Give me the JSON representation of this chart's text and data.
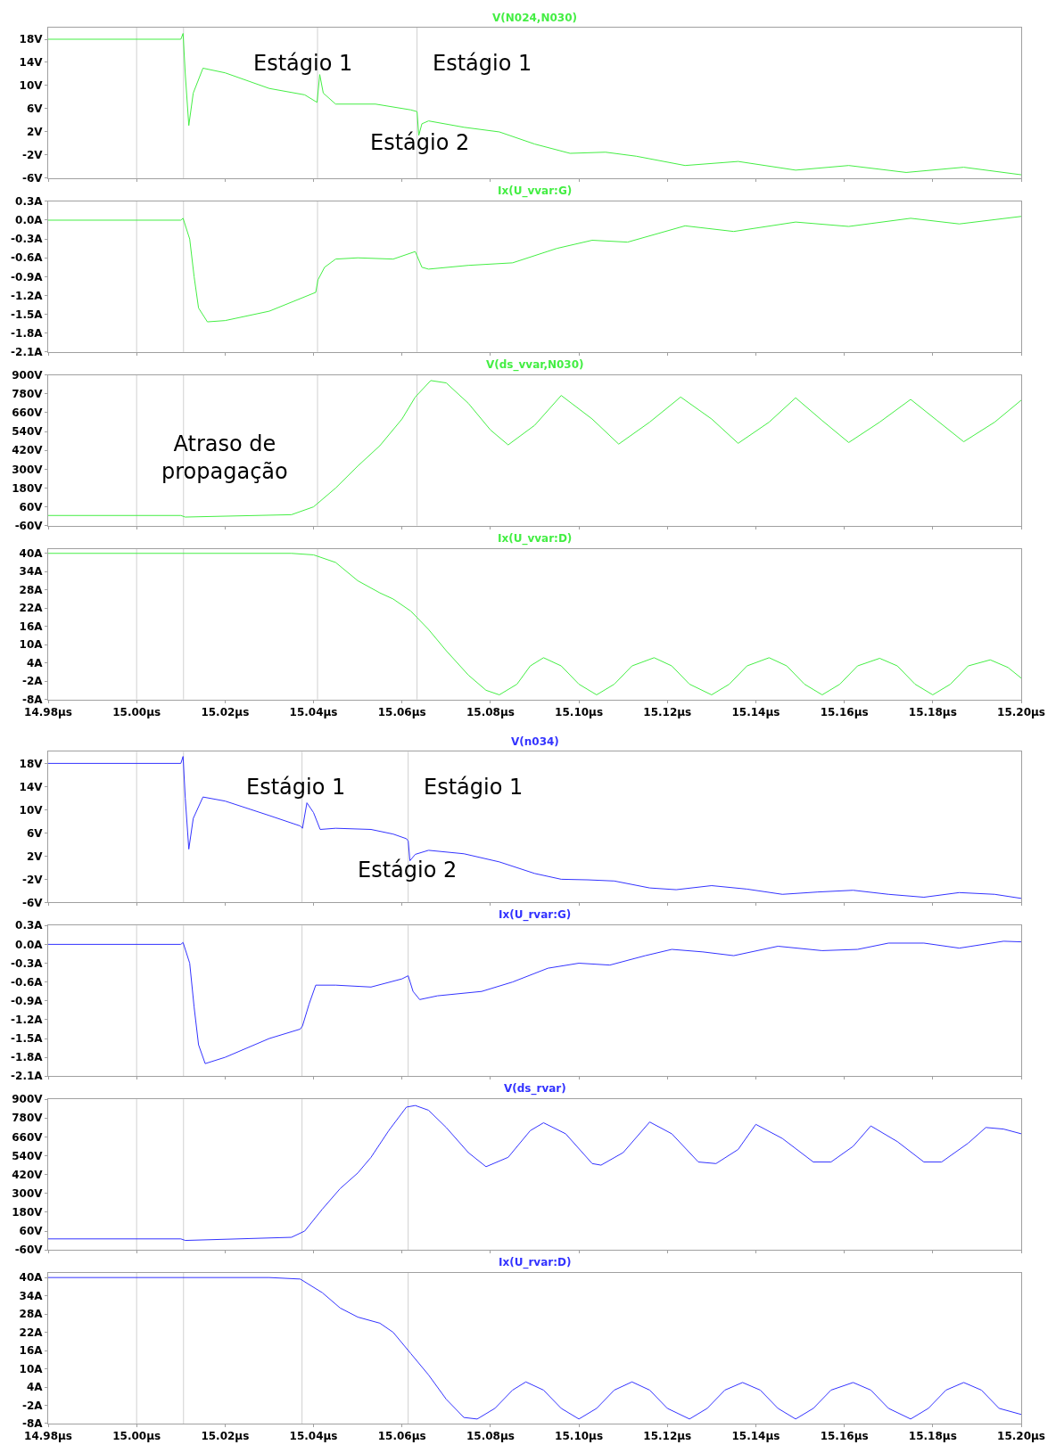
{
  "chart_data": [
    {
      "type": "line",
      "title": "V(N024,N030)",
      "xlim": [
        14.98,
        15.2
      ],
      "xticks": [
        {
          "value": 14.98,
          "label": "14.98µs"
        },
        {
          "value": 15.0,
          "label": "15.00µs"
        },
        {
          "value": 15.02,
          "label": "15.02µs"
        },
        {
          "value": 15.04,
          "label": "15.04µs"
        },
        {
          "value": 15.06,
          "label": "15.06µs"
        },
        {
          "value": 15.08,
          "label": "15.08µs"
        },
        {
          "value": 15.1,
          "label": "15.10µs"
        },
        {
          "value": 15.12,
          "label": "15.12µs"
        },
        {
          "value": 15.14,
          "label": "15.14µs"
        },
        {
          "value": 15.16,
          "label": "15.16µs"
        },
        {
          "value": 15.18,
          "label": "15.18µs"
        },
        {
          "value": 15.2,
          "label": "15.20µs"
        }
      ],
      "tick_labels": "y",
      "ylim": [
        -6,
        20
      ],
      "yticks": [
        {
          "value": 18,
          "label": "18V"
        },
        {
          "value": 14,
          "label": "14V"
        },
        {
          "value": 10,
          "label": "10V"
        },
        {
          "value": 6,
          "label": "6V"
        },
        {
          "value": 2,
          "label": "2V"
        },
        {
          "value": -2,
          "label": "-2V"
        },
        {
          "value": -6,
          "label": "-6V"
        }
      ],
      "ref_lines": [
        {
          "axis": "x",
          "value": 15.0,
          "color": "#d0d0d0"
        },
        {
          "axis": "x",
          "value": 15.0106,
          "color": "#d0d0d0"
        },
        {
          "axis": "x",
          "value": 15.0409,
          "color": "#d0d0d0"
        },
        {
          "axis": "x",
          "value": 15.0634,
          "color": "#d0d0d0"
        }
      ],
      "annotations": [
        "Estágio 1",
        "Estágio 1",
        "Estágio 2"
      ],
      "series": [
        {
          "color": "#44ee44",
          "x": [
            14.98,
            15.01,
            15.0105,
            15.011,
            15.0118,
            15.0128,
            15.015,
            15.02,
            15.03,
            15.038,
            15.0408,
            15.0414,
            15.0422,
            15.045,
            15.054,
            15.062,
            15.0634,
            15.0638,
            15.0645,
            15.066,
            15.074,
            15.082,
            15.09,
            15.098,
            15.106,
            15.113,
            15.124,
            15.136,
            15.149,
            15.161,
            15.174,
            15.187,
            15.2
          ],
          "values": [
            18,
            18,
            19,
            12,
            3.1,
            8.7,
            13,
            12.2,
            9.5,
            8.4,
            7.1,
            11.9,
            8.7,
            6.8,
            6.8,
            5.8,
            5.5,
            1.4,
            3.4,
            3.9,
            2.8,
            2,
            -0.1,
            -1.7,
            -1.5,
            -2.2,
            -3.8,
            -3.1,
            -4.6,
            -3.8,
            -5,
            -4.1,
            -5.4
          ]
        }
      ]
    },
    {
      "type": "line",
      "title": "Ix(U_vvar:G)",
      "xlim": [
        14.98,
        15.2
      ],
      "xticks": [
        {
          "value": 14.98,
          "label": "14.98µs"
        },
        {
          "value": 15.0,
          "label": "15.00µs"
        },
        {
          "value": 15.02,
          "label": "15.02µs"
        },
        {
          "value": 15.04,
          "label": "15.04µs"
        },
        {
          "value": 15.06,
          "label": "15.06µs"
        },
        {
          "value": 15.08,
          "label": "15.08µs"
        },
        {
          "value": 15.1,
          "label": "15.10µs"
        },
        {
          "value": 15.12,
          "label": "15.12µs"
        },
        {
          "value": 15.14,
          "label": "15.14µs"
        },
        {
          "value": 15.16,
          "label": "15.16µs"
        },
        {
          "value": 15.18,
          "label": "15.18µs"
        },
        {
          "value": 15.2,
          "label": "15.20µs"
        }
      ],
      "tick_labels": "y",
      "ylim": [
        -2.1,
        0.3
      ],
      "yticks": [
        {
          "value": 0.3,
          "label": "0.3A"
        },
        {
          "value": 0.0,
          "label": "0.0A"
        },
        {
          "value": -0.3,
          "label": "-0.3A"
        },
        {
          "value": -0.6,
          "label": "-0.6A"
        },
        {
          "value": -0.9,
          "label": "-0.9A"
        },
        {
          "value": -1.2,
          "label": "-1.2A"
        },
        {
          "value": -1.5,
          "label": "-1.5A"
        },
        {
          "value": -1.8,
          "label": "-1.8A"
        },
        {
          "value": -2.1,
          "label": "-2.1A"
        }
      ],
      "ref_lines": [
        {
          "axis": "x",
          "value": 15.0,
          "color": "#d0d0d0"
        },
        {
          "axis": "x",
          "value": 15.0106,
          "color": "#d0d0d0"
        },
        {
          "axis": "x",
          "value": 15.0409,
          "color": "#d0d0d0"
        },
        {
          "axis": "x",
          "value": 15.0634,
          "color": "#d0d0d0"
        }
      ],
      "series": [
        {
          "color": "#44ee44",
          "x": [
            14.98,
            15.01,
            15.0105,
            15.012,
            15.013,
            15.014,
            15.016,
            15.02,
            15.03,
            15.0405,
            15.041,
            15.0425,
            15.045,
            15.05,
            15.058,
            15.063,
            15.0645,
            15.066,
            15.075,
            15.085,
            15.095,
            15.103,
            15.111,
            15.124,
            15.135,
            15.149,
            15.161,
            15.175,
            15.186,
            15.2
          ],
          "values": [
            0,
            0,
            0.03,
            -0.3,
            -0.9,
            -1.4,
            -1.62,
            -1.6,
            -1.45,
            -1.15,
            -0.95,
            -0.75,
            -0.62,
            -0.6,
            -0.62,
            -0.5,
            -0.75,
            -0.78,
            -0.72,
            -0.68,
            -0.45,
            -0.32,
            -0.35,
            -0.09,
            -0.18,
            -0.03,
            -0.1,
            0.03,
            -0.06,
            0.06
          ]
        }
      ]
    },
    {
      "type": "line",
      "title": "V(ds_vvar,N030)",
      "xlim": [
        14.98,
        15.2
      ],
      "xticks": [
        {
          "value": 14.98,
          "label": "14.98µs"
        },
        {
          "value": 15.0,
          "label": "15.00µs"
        },
        {
          "value": 15.02,
          "label": "15.02µs"
        },
        {
          "value": 15.04,
          "label": "15.04µs"
        },
        {
          "value": 15.06,
          "label": "15.06µs"
        },
        {
          "value": 15.08,
          "label": "15.08µs"
        },
        {
          "value": 15.1,
          "label": "15.10µs"
        },
        {
          "value": 15.12,
          "label": "15.12µs"
        },
        {
          "value": 15.14,
          "label": "15.14µs"
        },
        {
          "value": 15.16,
          "label": "15.16µs"
        },
        {
          "value": 15.18,
          "label": "15.18µs"
        },
        {
          "value": 15.2,
          "label": "15.20µs"
        }
      ],
      "tick_labels": "y",
      "ylim": [
        -60,
        900
      ],
      "yticks": [
        {
          "value": 900,
          "label": "900V"
        },
        {
          "value": 780,
          "label": "780V"
        },
        {
          "value": 660,
          "label": "660V"
        },
        {
          "value": 540,
          "label": "540V"
        },
        {
          "value": 420,
          "label": "420V"
        },
        {
          "value": 300,
          "label": "300V"
        },
        {
          "value": 180,
          "label": "180V"
        },
        {
          "value": 60,
          "label": "60V"
        },
        {
          "value": -60,
          "label": "-60V"
        }
      ],
      "ref_lines": [
        {
          "axis": "x",
          "value": 15.0,
          "color": "#d0d0d0"
        },
        {
          "axis": "x",
          "value": 15.0106,
          "color": "#d0d0d0"
        },
        {
          "axis": "x",
          "value": 15.0409,
          "color": "#d0d0d0"
        },
        {
          "axis": "x",
          "value": 15.0634,
          "color": "#d0d0d0"
        }
      ],
      "annotations": [
        "Atraso de propagação"
      ],
      "series": [
        {
          "color": "#44ee44",
          "x": [
            14.98,
            15.01,
            15.011,
            15.035,
            15.04,
            15.045,
            15.05,
            15.055,
            15.06,
            15.063,
            15.0665,
            15.07,
            15.075,
            15.08,
            15.084,
            15.09,
            15.096,
            15.103,
            15.109,
            15.116,
            15.123,
            15.13,
            15.136,
            15.143,
            15.149,
            15.155,
            15.161,
            15.168,
            15.175,
            15.181,
            15.187,
            15.194,
            15.2
          ],
          "values": [
            5,
            5,
            -5,
            10,
            60,
            180,
            320,
            450,
            620,
            760,
            865,
            850,
            720,
            550,
            455,
            580,
            770,
            620,
            460,
            600,
            760,
            620,
            465,
            600,
            755,
            610,
            470,
            600,
            745,
            610,
            475,
            600,
            740
          ]
        }
      ]
    },
    {
      "type": "line",
      "title": "Ix(U_vvar:D)",
      "xlim": [
        14.98,
        15.2
      ],
      "xticks": [
        {
          "value": 14.98,
          "label": "14.98µs"
        },
        {
          "value": 15.0,
          "label": "15.00µs"
        },
        {
          "value": 15.02,
          "label": "15.02µs"
        },
        {
          "value": 15.04,
          "label": "15.04µs"
        },
        {
          "value": 15.06,
          "label": "15.06µs"
        },
        {
          "value": 15.08,
          "label": "15.08µs"
        },
        {
          "value": 15.1,
          "label": "15.10µs"
        },
        {
          "value": 15.12,
          "label": "15.12µs"
        },
        {
          "value": 15.14,
          "label": "15.14µs"
        },
        {
          "value": 15.16,
          "label": "15.16µs"
        },
        {
          "value": 15.18,
          "label": "15.18µs"
        },
        {
          "value": 15.2,
          "label": "15.20µs"
        }
      ],
      "ylim": [
        -8,
        41.5
      ],
      "yticks": [
        {
          "value": 40,
          "label": "40A"
        },
        {
          "value": 34,
          "label": "34A"
        },
        {
          "value": 28,
          "label": "28A"
        },
        {
          "value": 22,
          "label": "22A"
        },
        {
          "value": 16,
          "label": "16A"
        },
        {
          "value": 10,
          "label": "10A"
        },
        {
          "value": 4,
          "label": "4A"
        },
        {
          "value": -2,
          "label": "-2A"
        },
        {
          "value": -8,
          "label": "-8A"
        }
      ],
      "ref_lines": [
        {
          "axis": "x",
          "value": 15.0,
          "color": "#d0d0d0"
        },
        {
          "axis": "x",
          "value": 15.0106,
          "color": "#d0d0d0"
        },
        {
          "axis": "x",
          "value": 15.0409,
          "color": "#d0d0d0"
        },
        {
          "axis": "x",
          "value": 15.0634,
          "color": "#d0d0d0"
        }
      ],
      "series": [
        {
          "color": "#44ee44",
          "x": [
            14.98,
            15.035,
            15.04,
            15.045,
            15.05,
            15.055,
            15.058,
            15.062,
            15.066,
            15.07,
            15.075,
            15.079,
            15.082,
            15.086,
            15.089,
            15.092,
            15.096,
            15.1,
            15.104,
            15.108,
            15.112,
            15.117,
            15.121,
            15.125,
            15.13,
            15.134,
            15.138,
            15.143,
            15.147,
            15.151,
            15.155,
            15.159,
            15.163,
            15.168,
            15.172,
            15.176,
            15.18,
            15.184,
            15.188,
            15.193,
            15.197,
            15.2
          ],
          "values": [
            40,
            40,
            39.5,
            37,
            31,
            27,
            25,
            21,
            15,
            8,
            0,
            -5,
            -6.5,
            -3,
            3,
            5.7,
            3,
            -3,
            -6.5,
            -3,
            3,
            5.7,
            3,
            -3,
            -6.5,
            -3,
            3,
            5.7,
            3,
            -3,
            -6.5,
            -3,
            3,
            5.5,
            3,
            -3,
            -6.5,
            -3,
            3,
            5,
            2.5,
            -1
          ]
        }
      ]
    },
    {
      "type": "line",
      "title": "V(n034)",
      "xlim": [
        14.98,
        15.2
      ],
      "xticks": [
        {
          "value": 14.98,
          "label": "14.98µs"
        },
        {
          "value": 15.0,
          "label": "15.00µs"
        },
        {
          "value": 15.02,
          "label": "15.02µs"
        },
        {
          "value": 15.04,
          "label": "15.04µs"
        },
        {
          "value": 15.06,
          "label": "15.06µs"
        },
        {
          "value": 15.08,
          "label": "15.08µs"
        },
        {
          "value": 15.1,
          "label": "15.10µs"
        },
        {
          "value": 15.12,
          "label": "15.12µs"
        },
        {
          "value": 15.14,
          "label": "15.14µs"
        },
        {
          "value": 15.16,
          "label": "15.16µs"
        },
        {
          "value": 15.18,
          "label": "15.18µs"
        },
        {
          "value": 15.2,
          "label": "15.20µs"
        }
      ],
      "tick_labels": "y",
      "ylim": [
        -6,
        20
      ],
      "yticks": [
        {
          "value": 18,
          "label": "18V"
        },
        {
          "value": 14,
          "label": "14V"
        },
        {
          "value": 10,
          "label": "10V"
        },
        {
          "value": 6,
          "label": "6V"
        },
        {
          "value": 2,
          "label": "2V"
        },
        {
          "value": -2,
          "label": "-2V"
        },
        {
          "value": -6,
          "label": "-6V"
        }
      ],
      "ref_lines": [
        {
          "axis": "x",
          "value": 15.0,
          "color": "#d0d0d0"
        },
        {
          "axis": "x",
          "value": 15.0106,
          "color": "#d0d0d0"
        },
        {
          "axis": "x",
          "value": 15.0374,
          "color": "#d0d0d0"
        },
        {
          "axis": "x",
          "value": 15.0614,
          "color": "#d0d0d0"
        }
      ],
      "annotations": [
        "Estágio 1",
        "Estágio 1",
        "Estágio 2"
      ],
      "series": [
        {
          "color": "#3333ff",
          "x": [
            14.98,
            15.01,
            15.0105,
            15.011,
            15.0118,
            15.0128,
            15.015,
            15.02,
            15.03,
            15.037,
            15.0375,
            15.0385,
            15.04,
            15.0415,
            15.045,
            15.053,
            15.058,
            15.061,
            15.0614,
            15.0618,
            15.063,
            15.066,
            15.074,
            15.082,
            15.09,
            15.096,
            15.102,
            15.108,
            15.116,
            15.122,
            15.13,
            15.138,
            15.146,
            15.154,
            15.162,
            15.17,
            15.178,
            15.186,
            15.194,
            15.2
          ],
          "values": [
            18,
            18,
            19.2,
            12,
            3.2,
            8.5,
            12.2,
            11.5,
            9,
            7.2,
            6.8,
            11.2,
            9.5,
            6.6,
            6.8,
            6.6,
            5.8,
            5,
            4.6,
            1.2,
            2.3,
            3,
            2.4,
            1,
            -1,
            -2,
            -2.1,
            -2.3,
            -3.5,
            -3.8,
            -3.1,
            -3.7,
            -4.6,
            -4.2,
            -3.9,
            -4.6,
            -5.1,
            -4.3,
            -4.6,
            -5.3
          ]
        }
      ]
    },
    {
      "type": "line",
      "title": "Ix(U_rvar:G)",
      "xlim": [
        14.98,
        15.2
      ],
      "xticks": [
        {
          "value": 14.98,
          "label": "14.98µs"
        },
        {
          "value": 15.0,
          "label": "15.00µs"
        },
        {
          "value": 15.02,
          "label": "15.02µs"
        },
        {
          "value": 15.04,
          "label": "15.04µs"
        },
        {
          "value": 15.06,
          "label": "15.06µs"
        },
        {
          "value": 15.08,
          "label": "15.08µs"
        },
        {
          "value": 15.1,
          "label": "15.10µs"
        },
        {
          "value": 15.12,
          "label": "15.12µs"
        },
        {
          "value": 15.14,
          "label": "15.14µs"
        },
        {
          "value": 15.16,
          "label": "15.16µs"
        },
        {
          "value": 15.18,
          "label": "15.18µs"
        },
        {
          "value": 15.2,
          "label": "15.20µs"
        }
      ],
      "tick_labels": "y",
      "ylim": [
        -2.1,
        0.3
      ],
      "yticks": [
        {
          "value": 0.3,
          "label": "0.3A"
        },
        {
          "value": 0.0,
          "label": "0.0A"
        },
        {
          "value": -0.3,
          "label": "-0.3A"
        },
        {
          "value": -0.6,
          "label": "-0.6A"
        },
        {
          "value": -0.9,
          "label": "-0.9A"
        },
        {
          "value": -1.2,
          "label": "-1.2A"
        },
        {
          "value": -1.5,
          "label": "-1.5A"
        },
        {
          "value": -1.8,
          "label": "-1.8A"
        },
        {
          "value": -2.1,
          "label": "-2.1A"
        }
      ],
      "ref_lines": [
        {
          "axis": "x",
          "value": 15.0,
          "color": "#d0d0d0"
        },
        {
          "axis": "x",
          "value": 15.0106,
          "color": "#d0d0d0"
        },
        {
          "axis": "x",
          "value": 15.0374,
          "color": "#d0d0d0"
        },
        {
          "axis": "x",
          "value": 15.0614,
          "color": "#d0d0d0"
        }
      ],
      "series": [
        {
          "color": "#3333ff",
          "x": [
            14.98,
            15.01,
            15.0105,
            15.012,
            15.013,
            15.014,
            15.0155,
            15.02,
            15.03,
            15.037,
            15.0375,
            15.039,
            15.0405,
            15.045,
            15.053,
            15.06,
            15.0614,
            15.0625,
            15.064,
            15.068,
            15.078,
            15.085,
            15.093,
            15.1,
            15.107,
            15.115,
            15.121,
            15.128,
            15.135,
            15.145,
            15.155,
            15.163,
            15.17,
            15.178,
            15.186,
            15.196,
            15.2
          ],
          "values": [
            0,
            0,
            0.03,
            -0.3,
            -1.0,
            -1.6,
            -1.9,
            -1.8,
            -1.5,
            -1.35,
            -1.3,
            -0.95,
            -0.65,
            -0.65,
            -0.68,
            -0.55,
            -0.5,
            -0.75,
            -0.88,
            -0.82,
            -0.75,
            -0.6,
            -0.38,
            -0.3,
            -0.33,
            -0.18,
            -0.08,
            -0.12,
            -0.18,
            -0.03,
            -0.1,
            -0.08,
            0.02,
            0.02,
            -0.06,
            0.05,
            0.04
          ]
        }
      ]
    },
    {
      "type": "line",
      "title": "V(ds_rvar)",
      "xlim": [
        14.98,
        15.2
      ],
      "xticks": [
        {
          "value": 14.98,
          "label": "14.98µs"
        },
        {
          "value": 15.0,
          "label": "15.00µs"
        },
        {
          "value": 15.02,
          "label": "15.02µs"
        },
        {
          "value": 15.04,
          "label": "15.04µs"
        },
        {
          "value": 15.06,
          "label": "15.06µs"
        },
        {
          "value": 15.08,
          "label": "15.08µs"
        },
        {
          "value": 15.1,
          "label": "15.10µs"
        },
        {
          "value": 15.12,
          "label": "15.12µs"
        },
        {
          "value": 15.14,
          "label": "15.14µs"
        },
        {
          "value": 15.16,
          "label": "15.16µs"
        },
        {
          "value": 15.18,
          "label": "15.18µs"
        },
        {
          "value": 15.2,
          "label": "15.20µs"
        }
      ],
      "tick_labels": "y",
      "ylim": [
        -60,
        900
      ],
      "yticks": [
        {
          "value": 900,
          "label": "900V"
        },
        {
          "value": 780,
          "label": "780V"
        },
        {
          "value": 660,
          "label": "660V"
        },
        {
          "value": 540,
          "label": "540V"
        },
        {
          "value": 420,
          "label": "420V"
        },
        {
          "value": 300,
          "label": "300V"
        },
        {
          "value": 180,
          "label": "180V"
        },
        {
          "value": 60,
          "label": "60V"
        },
        {
          "value": -60,
          "label": "-60V"
        }
      ],
      "ref_lines": [
        {
          "axis": "x",
          "value": 15.0,
          "color": "#d0d0d0"
        },
        {
          "axis": "x",
          "value": 15.0106,
          "color": "#d0d0d0"
        },
        {
          "axis": "x",
          "value": 15.0374,
          "color": "#d0d0d0"
        },
        {
          "axis": "x",
          "value": 15.0614,
          "color": "#d0d0d0"
        }
      ],
      "series": [
        {
          "color": "#3333ff",
          "x": [
            14.98,
            15.01,
            15.011,
            15.035,
            15.038,
            15.042,
            15.046,
            15.05,
            15.053,
            15.057,
            15.061,
            15.063,
            15.066,
            15.07,
            15.075,
            15.079,
            15.084,
            15.089,
            15.092,
            15.097,
            15.103,
            15.105,
            15.11,
            15.116,
            15.121,
            15.127,
            15.131,
            15.136,
            15.14,
            15.146,
            15.153,
            15.157,
            15.162,
            15.166,
            15.172,
            15.178,
            15.182,
            15.188,
            15.192,
            15.196,
            15.2
          ],
          "values": [
            10,
            10,
            0,
            20,
            60,
            200,
            330,
            430,
            530,
            700,
            850,
            860,
            830,
            720,
            560,
            470,
            530,
            700,
            750,
            680,
            490,
            480,
            560,
            755,
            680,
            500,
            490,
            580,
            740,
            650,
            500,
            500,
            600,
            730,
            630,
            500,
            500,
            620,
            720,
            710,
            680
          ]
        }
      ]
    },
    {
      "type": "line",
      "title": "Ix(U_rvar:D)",
      "xlim": [
        14.98,
        15.2
      ],
      "xticks": [
        {
          "value": 14.98,
          "label": "14.98µs"
        },
        {
          "value": 15.0,
          "label": "15.00µs"
        },
        {
          "value": 15.02,
          "label": "15.02µs"
        },
        {
          "value": 15.04,
          "label": "15.04µs"
        },
        {
          "value": 15.06,
          "label": "15.06µs"
        },
        {
          "value": 15.08,
          "label": "15.08µs"
        },
        {
          "value": 15.1,
          "label": "15.10µs"
        },
        {
          "value": 15.12,
          "label": "15.12µs"
        },
        {
          "value": 15.14,
          "label": "15.14µs"
        },
        {
          "value": 15.16,
          "label": "15.16µs"
        },
        {
          "value": 15.18,
          "label": "15.18µs"
        },
        {
          "value": 15.2,
          "label": "15.20µs"
        }
      ],
      "ylim": [
        -8,
        41.5
      ],
      "yticks": [
        {
          "value": 40,
          "label": "40A"
        },
        {
          "value": 34,
          "label": "34A"
        },
        {
          "value": 28,
          "label": "28A"
        },
        {
          "value": 22,
          "label": "22A"
        },
        {
          "value": 16,
          "label": "16A"
        },
        {
          "value": 10,
          "label": "10A"
        },
        {
          "value": 4,
          "label": "4A"
        },
        {
          "value": -2,
          "label": "-2A"
        },
        {
          "value": -8,
          "label": "-8A"
        }
      ],
      "ref_lines": [
        {
          "axis": "x",
          "value": 15.0,
          "color": "#d0d0d0"
        },
        {
          "axis": "x",
          "value": 15.0106,
          "color": "#d0d0d0"
        },
        {
          "axis": "x",
          "value": 15.0374,
          "color": "#d0d0d0"
        },
        {
          "axis": "x",
          "value": 15.0614,
          "color": "#d0d0d0"
        }
      ],
      "series": [
        {
          "color": "#3333ff",
          "x": [
            14.98,
            15.03,
            15.037,
            15.042,
            15.046,
            15.05,
            15.055,
            15.058,
            15.062,
            15.066,
            15.07,
            15.074,
            15.077,
            15.081,
            15.085,
            15.088,
            15.092,
            15.096,
            15.1,
            15.104,
            15.108,
            15.112,
            15.116,
            15.12,
            15.125,
            15.129,
            15.133,
            15.137,
            15.141,
            15.145,
            15.149,
            15.153,
            15.157,
            15.162,
            15.166,
            15.17,
            15.175,
            15.179,
            15.183,
            15.187,
            15.191,
            15.195,
            15.2
          ],
          "values": [
            40,
            40,
            39.5,
            35,
            30,
            27,
            25,
            22,
            15,
            8,
            0,
            -6,
            -6.5,
            -3,
            3,
            5.7,
            3,
            -3,
            -6.5,
            -3,
            3,
            5.7,
            3,
            -3,
            -6.5,
            -3,
            3,
            5.5,
            3,
            -3,
            -6.5,
            -3,
            3,
            5.5,
            3,
            -3,
            -6.5,
            -3,
            3,
            5.5,
            3,
            -3,
            -5
          ]
        }
      ]
    }
  ]
}
